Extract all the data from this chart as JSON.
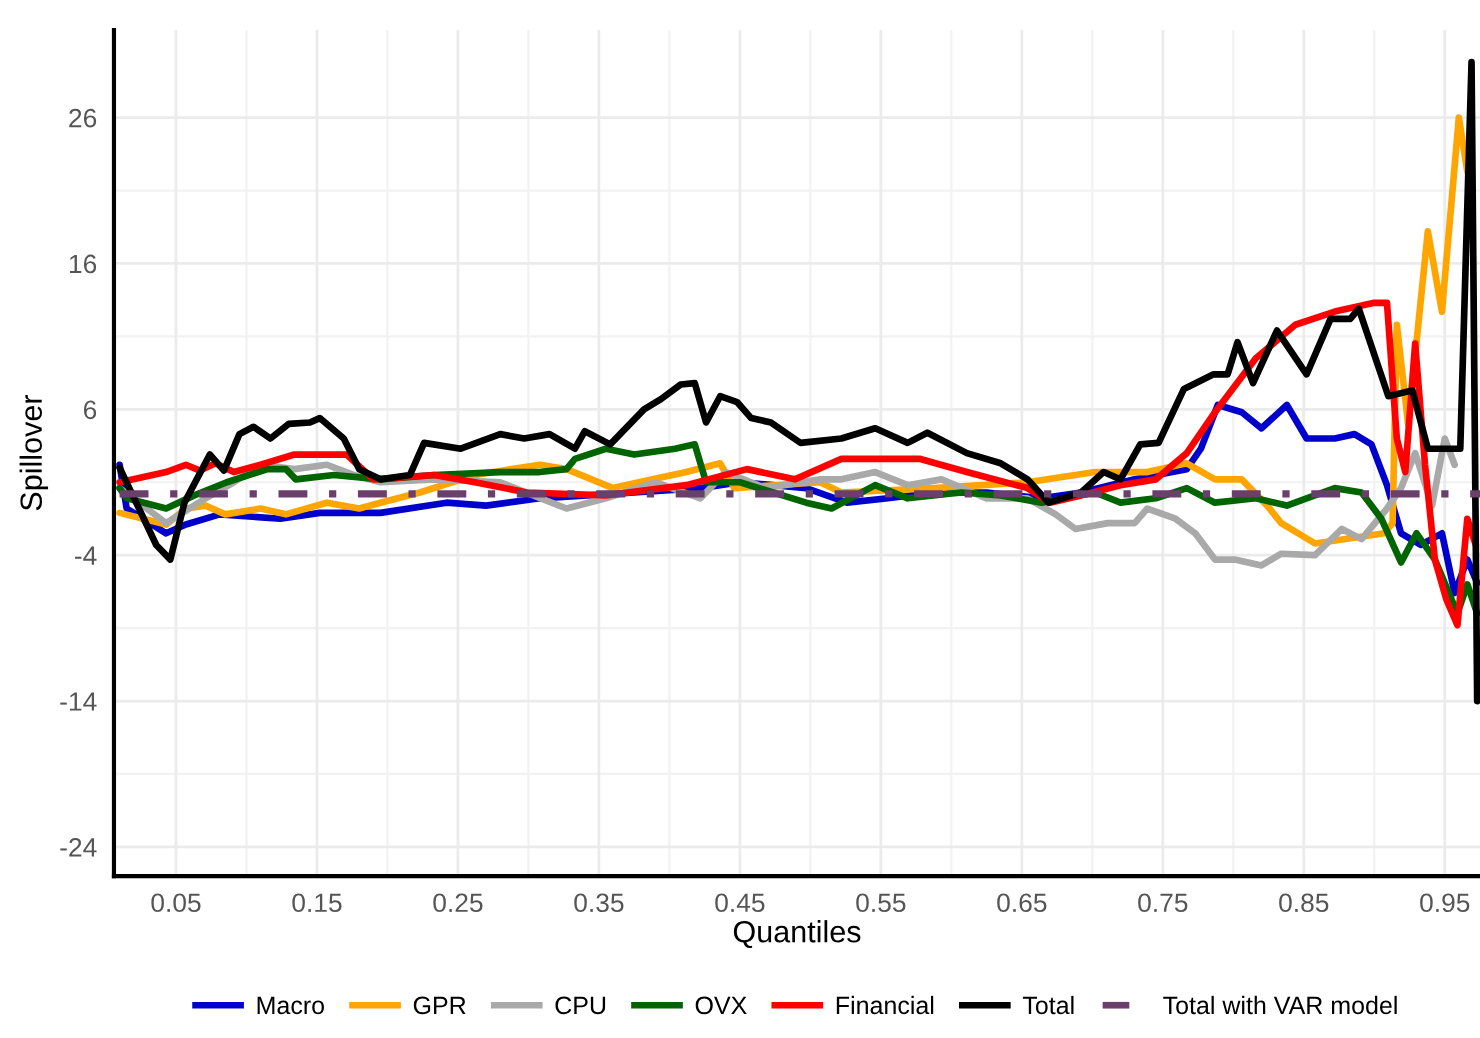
{
  "chart_data": {
    "type": "line",
    "xlabel": "Quantiles",
    "ylabel": "Spillover",
    "xlim": [
      0.006,
      0.975
    ],
    "ylim": [
      -26,
      32
    ],
    "xticks": [
      0.05,
      0.15,
      0.25,
      0.35,
      0.45,
      0.55,
      0.65,
      0.75,
      0.85,
      0.95
    ],
    "yticks": [
      -24,
      -14,
      -4,
      6,
      16,
      26
    ],
    "grid": true,
    "legend": "bottom",
    "line_style": "solid",
    "marker": "none",
    "series": [
      {
        "name": "Macro",
        "color": "#0000cd",
        "x": [
          0.01,
          0.015,
          0.043,
          0.057,
          0.081,
          0.124,
          0.152,
          0.195,
          0.242,
          0.27,
          0.308,
          0.375,
          0.422,
          0.45,
          0.497,
          0.526,
          0.555,
          0.588,
          0.625,
          0.664,
          0.692,
          0.73,
          0.767,
          0.777,
          0.789,
          0.806,
          0.82,
          0.838,
          0.852,
          0.872,
          0.886,
          0.898,
          0.909,
          0.919,
          0.933,
          0.948,
          0.957,
          0.966,
          0.973
        ],
        "values": [
          2.2,
          -0.8,
          -2.5,
          -1.9,
          -1.2,
          -1.5,
          -1.1,
          -1.1,
          -0.4,
          -0.6,
          -0.1,
          0.3,
          0.6,
          1,
          0.6,
          -0.4,
          -0.1,
          0.3,
          0.3,
          -0.1,
          0.3,
          1.2,
          1.9,
          3.3,
          6.3,
          5.8,
          4.7,
          6.3,
          4,
          4,
          4.3,
          3.6,
          0.8,
          -2.5,
          -3.3,
          -2.5,
          -6.6,
          -4.3,
          -5.9
        ]
      },
      {
        "name": "GPR",
        "color": "#ffa500",
        "x": [
          0.01,
          0.043,
          0.057,
          0.071,
          0.085,
          0.11,
          0.128,
          0.157,
          0.18,
          0.195,
          0.223,
          0.262,
          0.308,
          0.327,
          0.36,
          0.388,
          0.412,
          0.436,
          0.446,
          0.507,
          0.522,
          0.588,
          0.654,
          0.702,
          0.739,
          0.767,
          0.787,
          0.806,
          0.824,
          0.834,
          0.858,
          0.9,
          0.907,
          0.913,
          0.916,
          0.924,
          0.938,
          0.948,
          0.96,
          0.966
        ],
        "values": [
          -1.1,
          -1.9,
          -0.8,
          -0.6,
          -1.2,
          -0.8,
          -1.2,
          -0.4,
          -0.8,
          -0.4,
          0.3,
          1.5,
          2.2,
          1.9,
          0.6,
          1.2,
          1.7,
          2.3,
          0.6,
          1,
          0.3,
          0.6,
          1,
          1.7,
          1.7,
          2.3,
          1.2,
          1.2,
          -0.6,
          -1.8,
          -3.2,
          -2.6,
          -2.5,
          -1.8,
          11.8,
          5,
          18.2,
          12.7,
          26,
          22.3
        ]
      },
      {
        "name": "CPU",
        "color": "#a9a9a9",
        "x": [
          0.01,
          0.043,
          0.071,
          0.091,
          0.11,
          0.134,
          0.157,
          0.176,
          0.195,
          0.233,
          0.28,
          0.327,
          0.355,
          0.39,
          0.422,
          0.44,
          0.468,
          0.507,
          0.522,
          0.546,
          0.569,
          0.593,
          0.625,
          0.654,
          0.674,
          0.688,
          0.711,
          0.73,
          0.739,
          0.759,
          0.773,
          0.787,
          0.801,
          0.82,
          0.834,
          0.858,
          0.877,
          0.891,
          0.909,
          0.919,
          0.929,
          0.941,
          0.95,
          0.957
        ],
        "values": [
          0.6,
          -1.8,
          -0.1,
          1,
          2.2,
          1.9,
          2.2,
          1.5,
          1,
          1.2,
          1,
          -0.8,
          -0.1,
          1,
          -0.1,
          1.7,
          0.6,
          1.2,
          1.2,
          1.7,
          0.8,
          1.2,
          -0.1,
          -0.1,
          -1.2,
          -2.2,
          -1.8,
          -1.8,
          -0.8,
          -1.5,
          -2.5,
          -4.3,
          -4.3,
          -4.7,
          -3.9,
          -4,
          -2.2,
          -2.9,
          -0.8,
          0.6,
          3,
          -0.6,
          4,
          2.2
        ]
      },
      {
        "name": "OVX",
        "color": "#006400",
        "x": [
          0.01,
          0.015,
          0.043,
          0.063,
          0.086,
          0.115,
          0.128,
          0.135,
          0.162,
          0.195,
          0.233,
          0.28,
          0.308,
          0.327,
          0.333,
          0.355,
          0.375,
          0.404,
          0.418,
          0.426,
          0.45,
          0.497,
          0.515,
          0.546,
          0.569,
          0.607,
          0.635,
          0.664,
          0.702,
          0.72,
          0.745,
          0.767,
          0.787,
          0.816,
          0.838,
          0.852,
          0.872,
          0.891,
          0.905,
          0.919,
          0.93,
          0.943,
          0.959,
          0.966,
          0.973
        ],
        "values": [
          0.6,
          -0.1,
          -0.8,
          0.1,
          1,
          1.9,
          1.9,
          1.2,
          1.5,
          1.2,
          1.5,
          1.7,
          1.7,
          1.9,
          2.6,
          3.3,
          2.9,
          3.3,
          3.6,
          1,
          1,
          -0.4,
          -0.8,
          0.8,
          -0.1,
          0.3,
          0.1,
          -0.4,
          0.3,
          -0.4,
          -0.1,
          0.6,
          -0.4,
          -0.1,
          -0.6,
          -0.1,
          0.6,
          0.3,
          -1.5,
          -4.5,
          -2.5,
          -4.3,
          -8,
          -6,
          -8
        ]
      },
      {
        "name": "Financial",
        "color": "#ff0000",
        "x": [
          0.01,
          0.043,
          0.057,
          0.067,
          0.078,
          0.091,
          0.11,
          0.134,
          0.143,
          0.171,
          0.19,
          0.233,
          0.262,
          0.299,
          0.355,
          0.412,
          0.455,
          0.489,
          0.522,
          0.578,
          0.611,
          0.654,
          0.67,
          0.692,
          0.72,
          0.745,
          0.767,
          0.787,
          0.816,
          0.844,
          0.872,
          0.9,
          0.909,
          0.916,
          0.922,
          0.929,
          0.936,
          0.943,
          0.951,
          0.959,
          0.966,
          0.972
        ],
        "values": [
          1,
          1.7,
          2.2,
          1.8,
          2.3,
          1.7,
          2.2,
          2.9,
          2.9,
          2.9,
          1.2,
          1.5,
          1,
          0.3,
          0.1,
          0.8,
          1.9,
          1.2,
          2.6,
          2.6,
          1.7,
          0.6,
          -0.4,
          0.1,
          0.8,
          1.2,
          3,
          5.8,
          9.5,
          11.8,
          12.7,
          13.3,
          13.3,
          4,
          1.7,
          10.5,
          2.2,
          -4.3,
          -7,
          -8.8,
          -1.5,
          -3.3
        ]
      },
      {
        "name": "Total",
        "color": "#000000",
        "x": [
          0.01,
          0.036,
          0.046,
          0.056,
          0.074,
          0.084,
          0.095,
          0.105,
          0.117,
          0.13,
          0.145,
          0.152,
          0.169,
          0.18,
          0.195,
          0.216,
          0.226,
          0.252,
          0.28,
          0.297,
          0.315,
          0.333,
          0.34,
          0.358,
          0.382,
          0.394,
          0.408,
          0.418,
          0.426,
          0.436,
          0.448,
          0.458,
          0.472,
          0.493,
          0.522,
          0.546,
          0.569,
          0.583,
          0.611,
          0.635,
          0.654,
          0.669,
          0.692,
          0.708,
          0.72,
          0.734,
          0.747,
          0.765,
          0.786,
          0.796,
          0.803,
          0.814,
          0.831,
          0.852,
          0.869,
          0.883,
          0.889,
          0.91,
          0.927,
          0.938,
          0.949,
          0.961,
          0.969,
          0.973
        ],
        "values": [
          2,
          -3.3,
          -4.3,
          -0.4,
          2.9,
          1.8,
          4.3,
          4.8,
          4,
          5,
          5.1,
          5.4,
          4,
          1.9,
          1.2,
          1.5,
          3.7,
          3.3,
          4.3,
          4,
          4.3,
          3.3,
          4.5,
          3.6,
          6,
          6.7,
          7.7,
          7.8,
          5.1,
          6.9,
          6.5,
          5.4,
          5.1,
          3.7,
          4,
          4.7,
          3.7,
          4.4,
          3,
          2.3,
          1.2,
          -0.4,
          0.3,
          1.7,
          1.2,
          3.6,
          3.7,
          7.4,
          8.4,
          8.4,
          10.6,
          7.8,
          11.4,
          8.4,
          12.2,
          12.2,
          12.9,
          6.9,
          7.3,
          3.3,
          3.3,
          3.3,
          29.8,
          -14
        ]
      },
      {
        "name": "Total with VAR model",
        "color": "#6b3f6b",
        "line_style": "dashed",
        "x": [
          0.01,
          0.975
        ],
        "values": [
          0.2,
          0.2
        ]
      }
    ]
  }
}
